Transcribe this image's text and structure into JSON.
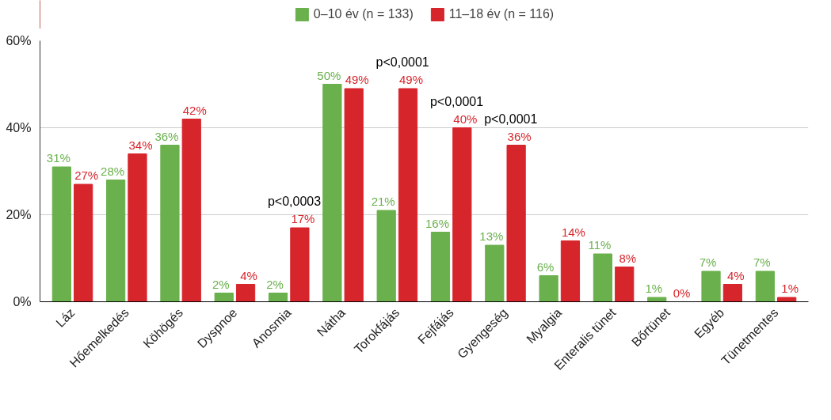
{
  "chart_data": {
    "type": "bar",
    "categories": [
      "Láz",
      "Hőemelkedés",
      "Köhögés",
      "Dyspnoe",
      "Anosmia",
      "Nátha",
      "Torokfájás",
      "Fejfájás",
      "Gyengeség",
      "Myalgia",
      "Enteralis tünet",
      "Bőrtünet",
      "Egyéb",
      "Tünetmentes"
    ],
    "series": [
      {
        "name": "0–10 év (n = 133)",
        "color": "#6ab04c",
        "values": [
          31,
          28,
          36,
          2,
          2,
          50,
          21,
          16,
          13,
          6,
          11,
          1,
          7,
          7
        ],
        "value_labels": [
          "31%",
          "28%",
          "36%",
          "2%",
          "2%",
          "50%",
          "21%",
          "16%",
          "13%",
          "6%",
          "11%",
          "1%",
          "7%",
          "7%"
        ]
      },
      {
        "name": "11–18 év (n = 116)",
        "color": "#d7252c",
        "values": [
          27,
          34,
          42,
          4,
          17,
          49,
          49,
          40,
          36,
          14,
          8,
          0,
          4,
          1
        ],
        "value_labels": [
          "27%",
          "34%",
          "42%",
          "4%",
          "17%",
          "49%",
          "49%",
          "40%",
          "36%",
          "14%",
          "8%",
          "0%",
          "4%",
          "1%"
        ]
      }
    ],
    "ylim": [
      0,
      60
    ],
    "yticks": [
      {
        "value": 0,
        "label": "0%"
      },
      {
        "value": 20,
        "label": "20%"
      },
      {
        "value": 40,
        "label": "40%"
      },
      {
        "value": 60,
        "label": "60%"
      }
    ],
    "grid": "y",
    "legend": "top",
    "annotations": [
      {
        "text": "p<0,0003",
        "x": "Anosmia",
        "y": 17
      },
      {
        "text": "p<0,0001",
        "x": "Torokfájás",
        "y": 49
      },
      {
        "text": "p<0,0001",
        "x": "Fejfájás",
        "y": 40
      },
      {
        "text": "p<0,0001",
        "x": "Gyengeség",
        "y": 36
      }
    ]
  }
}
